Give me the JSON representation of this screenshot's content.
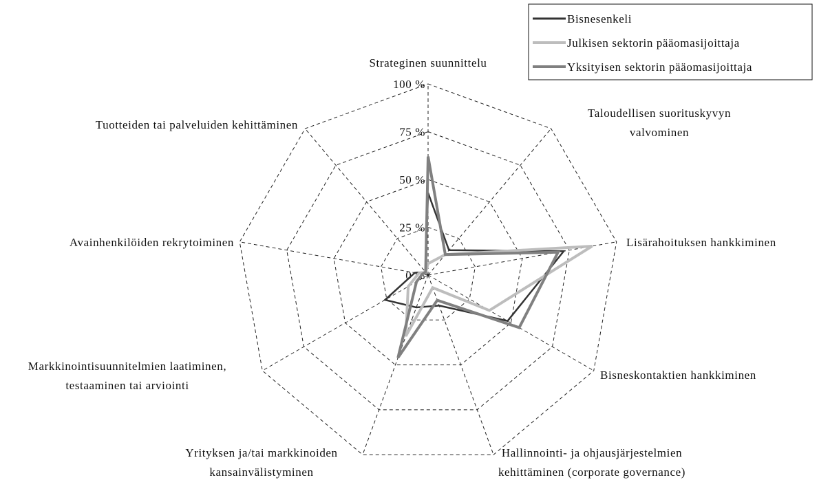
{
  "chart_data": {
    "type": "radar",
    "categories": [
      "Strateginen suunnittelu",
      "Taloudellisen suorituskyvyn\nvalvominen",
      "Lisärahoituksen hankkiminen",
      "Bisneskontaktien hankkiminen",
      "Hallinnointi- ja ohjausjärjestelmien\nkehittäminen (corporate governance)",
      "Yrityksen ja/tai markkinoiden\nkansainvälistyminen",
      "Markkinointisuunnitelmien laatiminen,\ntestaaminen tai arviointi",
      "Avainhenkilöiden rekrytoiminen",
      "Tuotteiden tai palveluiden kehittäminen"
    ],
    "series": [
      {
        "name": "Bisnesenkeli",
        "color": "#333333",
        "values": [
          43,
          17,
          72,
          48,
          17,
          18,
          26,
          7,
          2
        ]
      },
      {
        "name": "Julkisen sektorin pääomasijoittaja",
        "color": "#bdbdbd",
        "values": [
          6,
          14,
          87,
          37,
          7,
          34,
          12,
          5,
          2
        ]
      },
      {
        "name": "Yksityisen sektorin pääomasijoittaja",
        "color": "#808080",
        "values": [
          62,
          14,
          69,
          55,
          14,
          46,
          7,
          3,
          2
        ]
      }
    ],
    "rlim": [
      0,
      100
    ],
    "rticks": [
      {
        "value": 0,
        "label": "0 %"
      },
      {
        "value": 25,
        "label": "25 %"
      },
      {
        "value": 50,
        "label": "50 %"
      },
      {
        "value": 75,
        "label": "75 %"
      },
      {
        "value": 100,
        "label": "100 %"
      }
    ],
    "legend": "top-right"
  }
}
